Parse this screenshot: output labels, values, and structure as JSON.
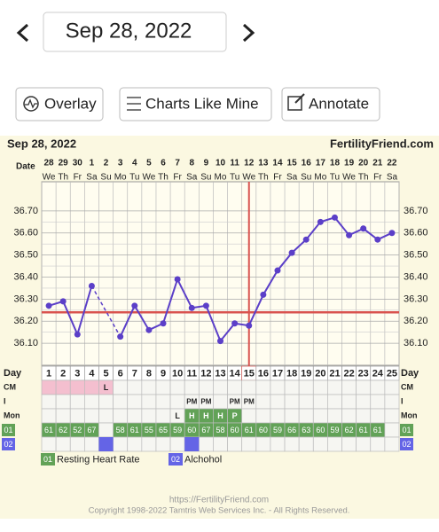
{
  "nav": {
    "date": "Sep 28, 2022"
  },
  "buttons": [
    "Overlay",
    "Charts Like Mine",
    "Annotate"
  ],
  "chart_data": {
    "type": "line",
    "title": "Sep 28, 2022",
    "brand": "FertilityFriend.com",
    "x_label": "Date",
    "categories": [
      "28",
      "29",
      "30",
      "1",
      "2",
      "3",
      "4",
      "5",
      "6",
      "7",
      "8",
      "9",
      "10",
      "11",
      "12",
      "13",
      "14",
      "15",
      "16",
      "17",
      "18",
      "19",
      "20",
      "21",
      "22"
    ],
    "weekdays": [
      "We",
      "Th",
      "Fr",
      "Sa",
      "Su",
      "Mo",
      "Tu",
      "We",
      "Th",
      "Fr",
      "Sa",
      "Su",
      "Mo",
      "Tu",
      "We",
      "Th",
      "Fr",
      "Sa",
      "Su",
      "Mo",
      "Tu",
      "We",
      "Th",
      "Fr",
      "Sa"
    ],
    "values": [
      36.27,
      36.29,
      36.14,
      36.36,
      null,
      36.13,
      36.27,
      36.16,
      36.19,
      36.39,
      36.26,
      36.27,
      36.11,
      36.19,
      36.18,
      36.32,
      36.43,
      36.51,
      36.57,
      36.65,
      36.67,
      36.59,
      36.62,
      36.57,
      36.6
    ],
    "color": "#5b3fc8",
    "coverline": 36.24,
    "ovulation_day": 15,
    "line_color": "#d9534f",
    "ylim": [
      36.0,
      36.8
    ],
    "yticks": [
      {
        "value": 36.1,
        "label": "36.10"
      },
      {
        "value": 36.2,
        "label": "36.20"
      },
      {
        "value": 36.3,
        "label": "36.30"
      },
      {
        "value": 36.4,
        "label": "36.40"
      },
      {
        "value": 36.5,
        "label": "36.50"
      },
      {
        "value": 36.6,
        "label": "36.60"
      },
      {
        "value": 36.7,
        "label": "36.70"
      }
    ],
    "grid": true
  },
  "row_labels": {
    "day": "Day",
    "cm": "CM",
    "intercourse": "I",
    "monitor": "Mon"
  },
  "days": [
    1,
    2,
    3,
    4,
    5,
    6,
    7,
    8,
    9,
    10,
    11,
    12,
    13,
    14,
    15,
    16,
    17,
    18,
    19,
    20,
    21,
    22,
    23,
    24,
    25
  ],
  "cm_marked_days": [
    1,
    2,
    3,
    4
  ],
  "cm": [
    null,
    null,
    null,
    null,
    "L",
    null,
    null,
    null,
    null,
    null,
    null,
    null,
    null,
    null,
    null,
    null,
    null,
    null,
    null,
    null,
    null,
    null,
    null,
    null,
    null
  ],
  "intercourse": [
    null,
    null,
    null,
    null,
    null,
    null,
    null,
    null,
    null,
    null,
    "PM",
    "PM",
    null,
    "PM",
    "PM",
    null,
    null,
    null,
    null,
    null,
    null,
    null,
    null,
    null,
    null
  ],
  "monitor": [
    null,
    null,
    null,
    null,
    null,
    null,
    null,
    null,
    null,
    "L",
    "H",
    "H",
    "H",
    "P",
    null,
    null,
    null,
    null,
    null,
    null,
    null,
    null,
    null,
    null,
    null
  ],
  "rhr": {
    "code": "01",
    "name": "Resting Heart Rate",
    "color": "#62a257",
    "values": [
      61,
      62,
      52,
      67,
      null,
      58,
      61,
      55,
      65,
      59,
      60,
      67,
      58,
      60,
      61,
      60,
      59,
      66,
      63,
      60,
      59,
      62,
      61,
      61,
      null
    ]
  },
  "alcohol": {
    "code": "02",
    "name": "Alchohol",
    "color": "#6464e6",
    "days": [
      5,
      11
    ]
  },
  "footer": {
    "url": "https://FertilityFriend.com",
    "copyright": "Copyright 1998-2022 Tamtris Web Services Inc. - All Rights Reserved."
  }
}
